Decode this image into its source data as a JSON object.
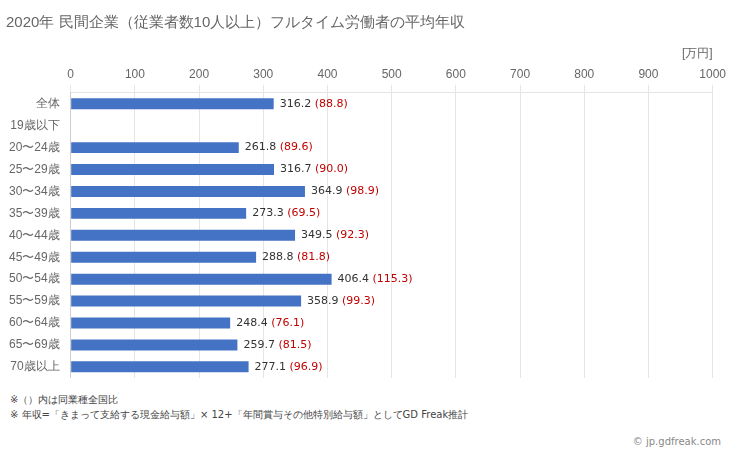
{
  "chart_data": {
    "type": "bar",
    "orientation": "horizontal",
    "title": "2020年 民間企業（従業者数10人以上）フルタイム労働者の平均年収",
    "xlabel": "[万円]",
    "categories": [
      "全体",
      "19歳以下",
      "20〜24歳",
      "25〜29歳",
      "30〜34歳",
      "35〜39歳",
      "40〜44歳",
      "45〜49歳",
      "50〜54歳",
      "55〜59歳",
      "60〜64歳",
      "65〜69歳",
      "70歳以上"
    ],
    "values": [
      316.2,
      0,
      261.8,
      316.7,
      364.9,
      273.3,
      349.5,
      288.8,
      406.4,
      358.9,
      248.4,
      259.7,
      277.1
    ],
    "value_labels": [
      "316.2",
      null,
      "261.8",
      "316.7",
      "364.9",
      "273.3",
      "349.5",
      "288.8",
      "406.4",
      "358.9",
      "248.4",
      "259.7",
      "277.1"
    ],
    "ratios": [
      88.8,
      null,
      89.6,
      90.0,
      98.9,
      69.5,
      92.3,
      81.8,
      115.3,
      99.3,
      76.1,
      81.5,
      96.9
    ],
    "ratio_labels": [
      "(88.8)",
      null,
      "(89.6)",
      "(90.0)",
      "(98.9)",
      "(69.5)",
      "(92.3)",
      "(81.8)",
      "(115.3)",
      "(99.3)",
      "(76.1)",
      "(81.5)",
      "(96.9)"
    ],
    "color": "#4472c4",
    "xlim": [
      0,
      1000
    ],
    "xticks": [
      0,
      100,
      200,
      300,
      400,
      500,
      600,
      700,
      800,
      900,
      1000
    ],
    "grid": true,
    "data_labels": true,
    "annotations": [
      "※（）内は同業種全国比",
      "※ 年収=「きまって支給する現金給与額」× 12+「年間賞与その他特別給与額」としてGD Freak推計",
      "© jp.gdfreak.com"
    ]
  }
}
